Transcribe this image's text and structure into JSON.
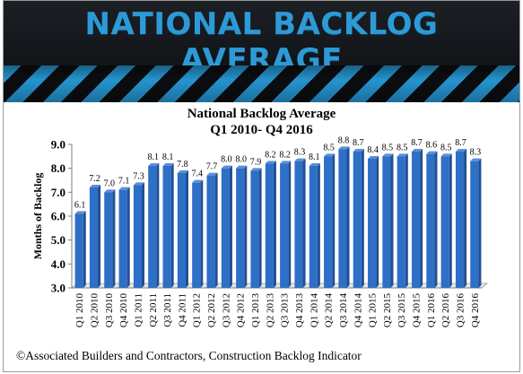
{
  "banner": {
    "title": "NATIONAL BACKLOG AVERAGE"
  },
  "footer": {
    "text": "©Associated Builders and Contractors, Construction Backlog Indicator"
  },
  "colors": {
    "bar": "#2e6fc7",
    "bar_dark": "#1f4f94",
    "banner_text": "#2d9ad6",
    "stripe": "#2594cf"
  },
  "chart_data": {
    "type": "bar",
    "title": "National Backlog Average",
    "subtitle": "Q1 2010- Q4 2016",
    "xlabel": "",
    "ylabel": "Months of Backlog",
    "ylim": [
      3.0,
      9.0
    ],
    "yticks": [
      "3.0",
      "4.0",
      "5.0",
      "6.0",
      "7.0",
      "8.0",
      "9.0"
    ],
    "grid": false,
    "categories": [
      "Q1 2010",
      "Q2 2010",
      "Q3 2010",
      "Q4 2010",
      "Q1 2011",
      "Q2 2011",
      "Q3 2011",
      "Q4 2011",
      "Q1 2012",
      "Q2 2012",
      "Q3 2012",
      "Q4 2012",
      "Q1 2013",
      "Q2 2013",
      "Q3 2013",
      "Q4 2013",
      "Q1 2014",
      "Q2 2014",
      "Q3 2014",
      "Q4 2014",
      "Q1 2015",
      "Q2 2015",
      "Q3 2015",
      "Q4 2015",
      "Q1 2016",
      "Q2 2016",
      "Q3 2016",
      "Q4 2016"
    ],
    "values": [
      6.1,
      7.2,
      7.0,
      7.1,
      7.3,
      8.1,
      8.1,
      7.8,
      7.4,
      7.7,
      8.0,
      8.0,
      7.9,
      8.2,
      8.2,
      8.3,
      8.1,
      8.5,
      8.8,
      8.7,
      8.4,
      8.5,
      8.5,
      8.7,
      8.6,
      8.5,
      8.7,
      8.3
    ],
    "labels": [
      "6.1",
      "7.2",
      "7.0",
      "7.1",
      "7.3",
      "8.1",
      "8.1",
      "7.8",
      "7.4",
      "7.7",
      "8.0",
      "8.0",
      "7.9",
      "8.2",
      "8.2",
      "8.3",
      "8.1",
      "8.5",
      "8.8",
      "8.7",
      "8.4",
      "8.5",
      "8.5",
      "8.7",
      "8.6",
      "8.5",
      "8.7",
      "8.3"
    ]
  }
}
